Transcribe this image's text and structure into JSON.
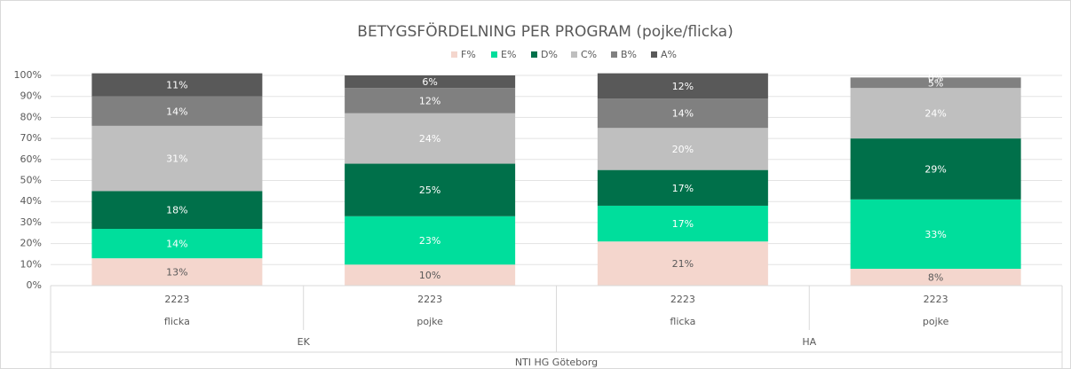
{
  "chart_data": {
    "type": "stacked_bar",
    "title": "BETYGSFÖRDELNING PER PROGRAM (pojke/flicka)",
    "categories": [
      "2223",
      "2223",
      "2223",
      "2223"
    ],
    "category_level2": [
      "flicka",
      "pojke",
      "flicka",
      "pojke"
    ],
    "category_level3": [
      "EK",
      "HA"
    ],
    "category_level4": "NTI HG Göteborg",
    "series": [
      {
        "name": "F%",
        "color": "#f4d6cd",
        "values": [
          13,
          10,
          21,
          8
        ],
        "value_labels": [
          "13%",
          "10%",
          "21%",
          "8%"
        ]
      },
      {
        "name": "E%",
        "color": "#00de9c",
        "values": [
          14,
          23,
          17,
          33
        ],
        "value_labels": [
          "14%",
          "23%",
          "17%",
          "33%"
        ]
      },
      {
        "name": "D%",
        "color": "#00704a",
        "values": [
          18,
          25,
          17,
          29
        ],
        "value_labels": [
          "18%",
          "25%",
          "17%",
          "29%"
        ]
      },
      {
        "name": "C%",
        "color": "#bfbfbf",
        "values": [
          31,
          24,
          20,
          24
        ],
        "value_labels": [
          "31%",
          "24%",
          "20%",
          "24%"
        ]
      },
      {
        "name": "B%",
        "color": "#808080",
        "values": [
          14,
          12,
          14,
          5
        ],
        "value_labels": [
          "14%",
          "12%",
          "14%",
          "5%"
        ]
      },
      {
        "name": "A%",
        "color": "#595959",
        "values": [
          11,
          6,
          12,
          0
        ],
        "value_labels": [
          "11%",
          "6%",
          "12%",
          "0%"
        ]
      }
    ],
    "ylim": [
      0,
      100
    ],
    "yticks": [
      {
        "value": 0,
        "label": "0%"
      },
      {
        "value": 10,
        "label": "10%"
      },
      {
        "value": 20,
        "label": "20%"
      },
      {
        "value": 30,
        "label": "30%"
      },
      {
        "value": 40,
        "label": "40%"
      },
      {
        "value": 50,
        "label": "50%"
      },
      {
        "value": 60,
        "label": "60%"
      },
      {
        "value": 70,
        "label": "70%"
      },
      {
        "value": 80,
        "label": "80%"
      },
      {
        "value": 90,
        "label": "90%"
      },
      {
        "value": 100,
        "label": "100%"
      }
    ],
    "grid": true,
    "legend": "top"
  }
}
